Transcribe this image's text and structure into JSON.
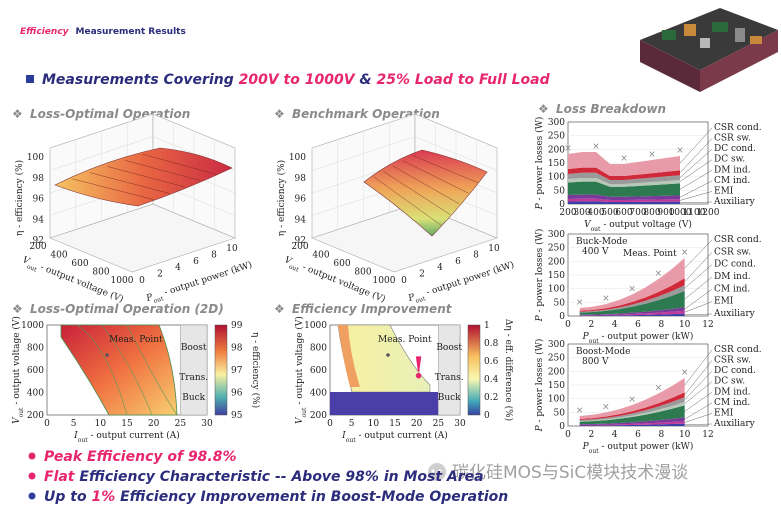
{
  "header": {
    "title_highlight": "Efficiency",
    "title_rest": "Measurement Results",
    "subtitle": [
      "Measurements Covering ",
      "200V to 1000V",
      " & ",
      "25% Load to Full Load"
    ]
  },
  "panels": [
    {
      "heading": "Loss-Optimal Operation",
      "z_label": "η - efficiency (%)",
      "z_ticks": [
        100,
        98,
        96,
        94,
        92
      ],
      "v_label": {
        "sym": "V",
        "sub": "out",
        "text": " - output voltage (V)"
      },
      "v_ticks": [
        200,
        400,
        600,
        800,
        1000
      ],
      "p_label": {
        "sym": "P",
        "sub": "out",
        "text": " - output power (kW)"
      },
      "p_ticks": [
        0,
        2,
        4,
        6,
        8,
        10
      ]
    },
    {
      "heading": "Benchmark Operation",
      "z_label": "η - efficiency (%)",
      "z_ticks": [
        100,
        98,
        96,
        94,
        92
      ],
      "v_label": {
        "sym": "V",
        "sub": "out",
        "text": " - output voltage (V)"
      },
      "v_ticks": [
        200,
        400,
        600,
        800,
        1000
      ],
      "p_label": {
        "sym": "P",
        "sub": "out",
        "text": " - output power (kW)"
      },
      "p_ticks": [
        0,
        2,
        4,
        6,
        8,
        10
      ]
    },
    {
      "heading": "Loss-Optimal Operation (2D)",
      "x_label": {
        "sym": "I",
        "sub": "out",
        "text": " - output current (A)"
      },
      "x_ticks": [
        0,
        5,
        10,
        15,
        20,
        25,
        30
      ],
      "y_label": {
        "sym": "V",
        "sub": "out",
        "text": " - output voltage (V)"
      },
      "y_ticks": [
        1000,
        800,
        600,
        400,
        200
      ],
      "colorbar_label": "η - efficiency (%)",
      "colorbar_ticks": [
        99,
        98,
        97,
        96,
        95
      ],
      "regions": [
        "Boost",
        "Trans.",
        "Buck"
      ],
      "annotation": "Meas. Point"
    },
    {
      "heading": "Efficiency Improvement",
      "x_label": {
        "sym": "I",
        "sub": "out",
        "text": " - output current (A)"
      },
      "x_ticks": [
        0,
        5,
        10,
        15,
        20,
        25,
        30
      ],
      "y_label": {
        "sym": "V",
        "sub": "out",
        "text": " - output voltage (V)"
      },
      "y_ticks": [
        1000,
        800,
        600,
        400,
        200
      ],
      "colorbar_label": "Δη - eff. difference (%)",
      "colorbar_ticks": [
        1,
        0.8,
        0.6,
        0.4,
        0.2,
        0
      ],
      "regions": [
        "Boost",
        "Trans.",
        "Buck"
      ],
      "annotation": "Meas. Point",
      "mark": "!"
    }
  ],
  "loss_breakdown": {
    "heading": "Loss Breakdown",
    "charts": [
      {
        "y_label": {
          "sym": "P",
          "text": " - power losses (W)"
        },
        "y_ticks": [
          300,
          250,
          200,
          150,
          100,
          50,
          0
        ],
        "x_label": {
          "sym": "V",
          "sub": "out",
          "text": " - output voltage (V)"
        },
        "x_ticks": [
          200,
          300,
          400,
          500,
          600,
          700,
          800,
          900,
          1000,
          1100,
          1200
        ],
        "legend": [
          {
            "name": "CSR cond.",
            "color": "#e89aa8"
          },
          {
            "name": "CSR sw.",
            "color": "#d02a3a"
          },
          {
            "name": "DC cond.",
            "color": "#9a9a9a"
          },
          {
            "name": "DC sw.",
            "color": "#b8c8b8"
          },
          {
            "name": "DM ind.",
            "color": "#2e7a50"
          },
          {
            "name": "CM ind.",
            "color": "#7a3a9a"
          },
          {
            "name": "EMI",
            "color": "#c0389a"
          },
          {
            "name": "Auxiliary",
            "color": "#3b3fa8"
          }
        ]
      },
      {
        "y_label": {
          "sym": "P",
          "text": " - power losses (W)"
        },
        "y_ticks": [
          300,
          250,
          200,
          150,
          100,
          50,
          0
        ],
        "x_label": {
          "sym": "P",
          "sub": "out",
          "text": " - output power (kW)"
        },
        "x_ticks": [
          0,
          2,
          4,
          6,
          8,
          10,
          12
        ],
        "mode": "Buck-Mode",
        "voltage": "400 V",
        "annotation": "Meas. Point",
        "legend": [
          {
            "name": "CSR cond.",
            "color": "#e89aa8"
          },
          {
            "name": "CSR sw.",
            "color": "#d02a3a"
          },
          {
            "name": "DC cond.",
            "color": "#9a9a9a"
          },
          {
            "name": "DM ind.",
            "color": "#2e7a50"
          },
          {
            "name": "CM ind.",
            "color": "#7a3a9a"
          },
          {
            "name": "EMI",
            "color": "#c0389a"
          },
          {
            "name": "Auxiliary",
            "color": "#3b3fa8"
          }
        ]
      },
      {
        "y_label": {
          "sym": "P",
          "text": " - power losses (W)"
        },
        "y_ticks": [
          300,
          250,
          200,
          150,
          100,
          50,
          0
        ],
        "x_label": {
          "sym": "P",
          "sub": "out",
          "text": " - output power (kW)"
        },
        "x_ticks": [
          0,
          2,
          4,
          6,
          8,
          10,
          12
        ],
        "mode": "Boost-Mode",
        "voltage": "800 V",
        "legend": [
          {
            "name": "CSR cond.",
            "color": "#e89aa8"
          },
          {
            "name": "CSR sw.",
            "color": "#d02a3a"
          },
          {
            "name": "DC cond.",
            "color": "#9a9a9a"
          },
          {
            "name": "DC sw.",
            "color": "#b8c8b8"
          },
          {
            "name": "DM ind.",
            "color": "#2e7a50"
          },
          {
            "name": "CM ind.",
            "color": "#7a3a9a"
          },
          {
            "name": "EMI",
            "color": "#c0389a"
          },
          {
            "name": "Auxiliary",
            "color": "#3b3fa8"
          }
        ]
      }
    ]
  },
  "bullets": [
    [
      "Peak Efficiency of 98.8%"
    ],
    [
      "Flat",
      " Efficiency Characteristic -- Above 98% in Most Area"
    ],
    [
      "Up to ",
      "1%",
      " Efficiency Improvement in Boost-Mode Operation"
    ]
  ],
  "watermark": "碳化硅MOS与SiC模块技术漫谈"
}
